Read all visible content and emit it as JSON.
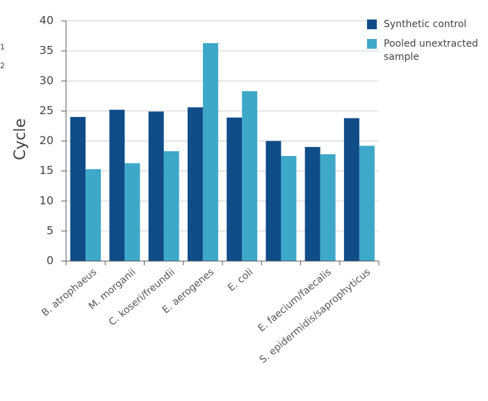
{
  "chart_data": {
    "type": "bar",
    "y_label": "Cycle",
    "categories": [
      "B. atrophaeus",
      "M. morganii",
      "C. koseri/freundii",
      "E. aerogenes",
      "E. coli",
      null,
      "E. faecium/faecalis",
      "S. epidermidis/saprophyticus"
    ],
    "series": [
      {
        "name": "Synthetic control",
        "color": "#0f4c88",
        "values": [
          24,
          25.2,
          24.9,
          25.6,
          23.9,
          20,
          19,
          23.8
        ]
      },
      {
        "name": "Pooled unextracted sample",
        "color": "#3ea8c9",
        "values": [
          15.3,
          16.3,
          18.3,
          36.3,
          28.3,
          17.5,
          17.8,
          19.2
        ]
      }
    ],
    "ylim": [
      0,
      40
    ],
    "yticks": [
      0,
      5,
      10,
      15,
      20,
      25,
      30,
      35,
      40
    ],
    "grid": true,
    "edge_text": [
      "1",
      "2"
    ]
  }
}
